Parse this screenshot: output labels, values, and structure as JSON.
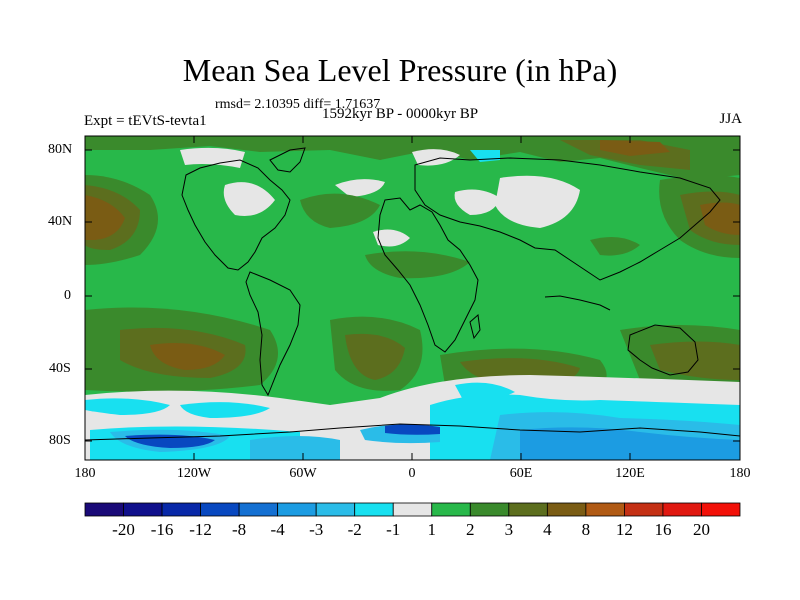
{
  "title": "Mean Sea Level Pressure (in hPa)",
  "stats": "rmsd= 2.10395 diff= 1.71637",
  "period": "1592kyr BP - 0000kyr BP",
  "experiment": "Expt = tEVtS-tevta1",
  "season": "JJA",
  "y_axis": {
    "labels": [
      "80N",
      "40N",
      "0",
      "40S",
      "80S"
    ]
  },
  "x_axis": {
    "labels": [
      "180",
      "120W",
      "60W",
      "0",
      "60E",
      "120E",
      "180"
    ]
  },
  "colorbar": {
    "labels": [
      "-20",
      "-16",
      "-12",
      "-8",
      "-4",
      "-3",
      "-2",
      "-1",
      "1",
      "2",
      "3",
      "4",
      "8",
      "12",
      "16",
      "20"
    ],
    "colors": [
      "#1a0a78",
      "#10108c",
      "#0828a8",
      "#0848c0",
      "#1470d2",
      "#1c9ce2",
      "#2abce8",
      "#18e0f0",
      "#e6e6e6",
      "#28b84a",
      "#3a8a2c",
      "#5c6e1e",
      "#7a5c14",
      "#b05a14",
      "#c43014",
      "#e01810",
      "#f21008"
    ]
  },
  "colors": {
    "green": "#28b84a",
    "dark_green": "#3a8a2c",
    "olive": "#5c6e1e",
    "brown": "#7a5c14",
    "white": "#e6e6e6",
    "cyan": "#18e0f0",
    "light_blue": "#2abce8",
    "blue": "#1c9ce2",
    "dark_blue": "#0848c0"
  }
}
